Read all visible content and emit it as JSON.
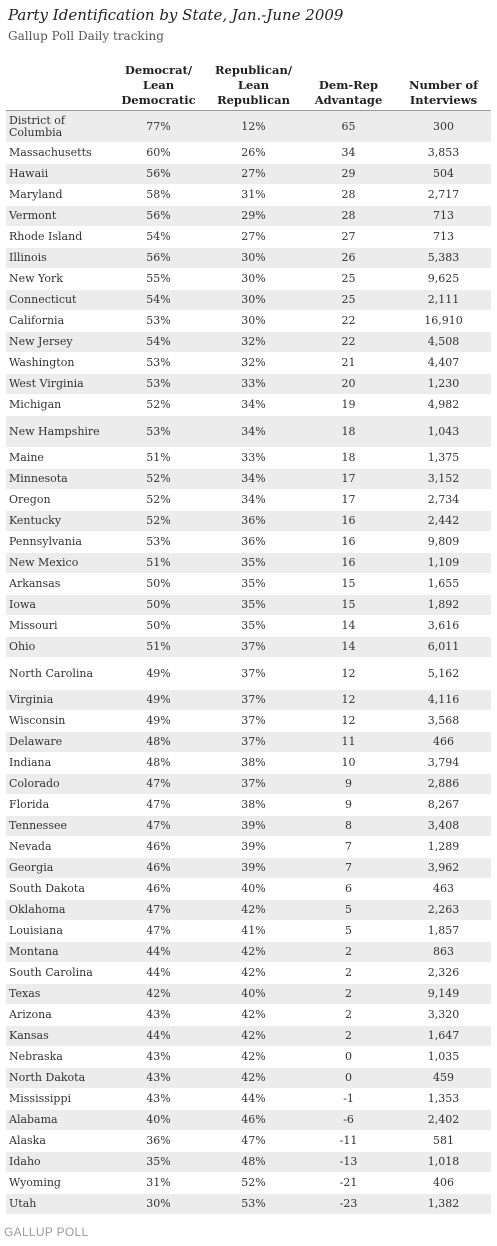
{
  "title": "Party Identification by State, Jan.-June 2009",
  "subtitle": "Gallup Poll Daily tracking",
  "footer": "GALLUP POLL",
  "chart_data": {
    "type": "table",
    "columns": [
      "",
      "Democrat/ Lean Democratic",
      "Republican/ Lean Republican",
      "Dem-Rep Advantage",
      "Number of Interviews"
    ],
    "rows": [
      [
        "District of Columbia",
        "77%",
        "12%",
        "65",
        "300"
      ],
      [
        "Massachusetts",
        "60%",
        "26%",
        "34",
        "3,853"
      ],
      [
        "Hawaii",
        "56%",
        "27%",
        "29",
        "504"
      ],
      [
        "Maryland",
        "58%",
        "31%",
        "28",
        "2,717"
      ],
      [
        "Vermont",
        "56%",
        "29%",
        "28",
        "713"
      ],
      [
        "Rhode Island",
        "54%",
        "27%",
        "27",
        "713"
      ],
      [
        "Illinois",
        "56%",
        "30%",
        "26",
        "5,383"
      ],
      [
        "New York",
        "55%",
        "30%",
        "25",
        "9,625"
      ],
      [
        "Connecticut",
        "54%",
        "30%",
        "25",
        "2,111"
      ],
      [
        "California",
        "53%",
        "30%",
        "22",
        "16,910"
      ],
      [
        "New Jersey",
        "54%",
        "32%",
        "22",
        "4,508"
      ],
      [
        "Washington",
        "53%",
        "32%",
        "21",
        "4,407"
      ],
      [
        "West Virginia",
        "53%",
        "33%",
        "20",
        "1,230"
      ],
      [
        "Michigan",
        "52%",
        "34%",
        "19",
        "4,982"
      ],
      [
        "New Hampshire",
        "53%",
        "34%",
        "18",
        "1,043"
      ],
      [
        "Maine",
        "51%",
        "33%",
        "18",
        "1,375"
      ],
      [
        "Minnesota",
        "52%",
        "34%",
        "17",
        "3,152"
      ],
      [
        "Oregon",
        "52%",
        "34%",
        "17",
        "2,734"
      ],
      [
        "Kentucky",
        "52%",
        "36%",
        "16",
        "2,442"
      ],
      [
        "Pennsylvania",
        "53%",
        "36%",
        "16",
        "9,809"
      ],
      [
        "New Mexico",
        "51%",
        "35%",
        "16",
        "1,109"
      ],
      [
        "Arkansas",
        "50%",
        "35%",
        "15",
        "1,655"
      ],
      [
        "Iowa",
        "50%",
        "35%",
        "15",
        "1,892"
      ],
      [
        "Missouri",
        "50%",
        "35%",
        "14",
        "3,616"
      ],
      [
        "Ohio",
        "51%",
        "37%",
        "14",
        "6,011"
      ],
      [
        "North Carolina",
        "49%",
        "37%",
        "12",
        "5,162"
      ],
      [
        "Virginia",
        "49%",
        "37%",
        "12",
        "4,116"
      ],
      [
        "Wisconsin",
        "49%",
        "37%",
        "12",
        "3,568"
      ],
      [
        "Delaware",
        "48%",
        "37%",
        "11",
        "466"
      ],
      [
        "Indiana",
        "48%",
        "38%",
        "10",
        "3,794"
      ],
      [
        "Colorado",
        "47%",
        "37%",
        "9",
        "2,886"
      ],
      [
        "Florida",
        "47%",
        "38%",
        "9",
        "8,267"
      ],
      [
        "Tennessee",
        "47%",
        "39%",
        "8",
        "3,408"
      ],
      [
        "Nevada",
        "46%",
        "39%",
        "7",
        "1,289"
      ],
      [
        "Georgia",
        "46%",
        "39%",
        "7",
        "3,962"
      ],
      [
        "South Dakota",
        "46%",
        "40%",
        "6",
        "463"
      ],
      [
        "Oklahoma",
        "47%",
        "42%",
        "5",
        "2,263"
      ],
      [
        "Louisiana",
        "47%",
        "41%",
        "5",
        "1,857"
      ],
      [
        "Montana",
        "44%",
        "42%",
        "2",
        "863"
      ],
      [
        "South Carolina",
        "44%",
        "42%",
        "2",
        "2,326"
      ],
      [
        "Texas",
        "42%",
        "40%",
        "2",
        "9,149"
      ],
      [
        "Arizona",
        "43%",
        "42%",
        "2",
        "3,320"
      ],
      [
        "Kansas",
        "44%",
        "42%",
        "2",
        "1,647"
      ],
      [
        "Nebraska",
        "43%",
        "42%",
        "0",
        "1,035"
      ],
      [
        "North Dakota",
        "43%",
        "42%",
        "0",
        "459"
      ],
      [
        "Mississippi",
        "43%",
        "44%",
        "-1",
        "1,353"
      ],
      [
        "Alabama",
        "40%",
        "46%",
        "-6",
        "2,402"
      ],
      [
        "Alaska",
        "36%",
        "47%",
        "-11",
        "581"
      ],
      [
        "Idaho",
        "35%",
        "48%",
        "-13",
        "1,018"
      ],
      [
        "Wyoming",
        "31%",
        "52%",
        "-21",
        "406"
      ],
      [
        "Utah",
        "30%",
        "53%",
        "-23",
        "1,382"
      ]
    ]
  }
}
